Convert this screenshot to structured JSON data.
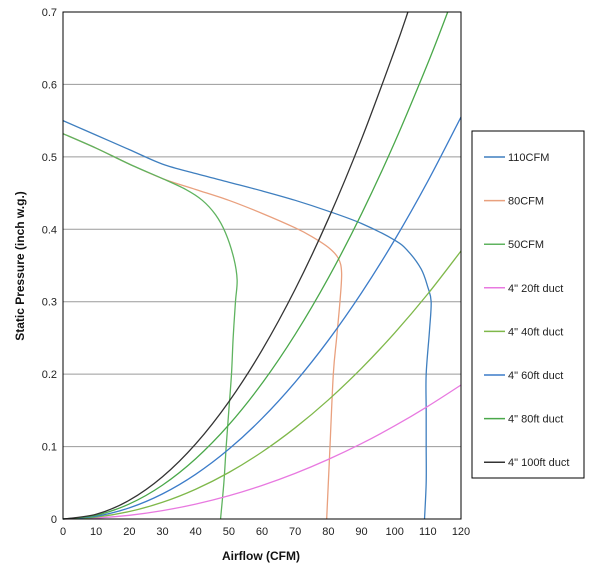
{
  "chart_data": {
    "type": "line",
    "title": "",
    "xlabel": "Airflow (CFM)",
    "ylabel": "Static Pressure (inch w.g.)",
    "xlim": [
      0,
      120
    ],
    "ylim": [
      0,
      0.7
    ],
    "xticks": [
      0,
      10,
      20,
      30,
      40,
      50,
      60,
      70,
      80,
      90,
      100,
      110,
      120
    ],
    "yticks": [
      0,
      0.1,
      0.2,
      0.3,
      0.4,
      0.5,
      0.6,
      0.7
    ],
    "grid": "horizontal",
    "legend_position": "right",
    "series": [
      {
        "name": "110CFM",
        "color": "#3f7fbf",
        "x": [
          0,
          10,
          20,
          30,
          40,
          50,
          60,
          70,
          80,
          90,
          100,
          104,
          108,
          110,
          111,
          110.5,
          109.5,
          109.5,
          109.5,
          109.5,
          109
        ],
        "y": [
          0.55,
          0.53,
          0.51,
          0.49,
          0.477,
          0.465,
          0.453,
          0.44,
          0.425,
          0.408,
          0.385,
          0.37,
          0.345,
          0.32,
          0.3,
          0.26,
          0.2,
          0.15,
          0.1,
          0.05,
          0.0
        ]
      },
      {
        "name": "80CFM",
        "color": "#e9a07e",
        "x": [
          0,
          10,
          20,
          30,
          40,
          50,
          60,
          70,
          75,
          80,
          83,
          84,
          83.5,
          82.5,
          81.5,
          80.5,
          80,
          79.5
        ],
        "y": [
          0.532,
          0.512,
          0.49,
          0.47,
          0.455,
          0.44,
          0.422,
          0.402,
          0.39,
          0.375,
          0.36,
          0.34,
          0.3,
          0.25,
          0.2,
          0.1,
          0.05,
          0.0
        ]
      },
      {
        "name": "50CFM",
        "color": "#5fb35f",
        "x": [
          0,
          10,
          20,
          30,
          37,
          42,
          46,
          49,
          51.5,
          52.5,
          52,
          51.3,
          50.8,
          50,
          49.2,
          48.5,
          47.5
        ],
        "y": [
          0.532,
          0.512,
          0.49,
          0.47,
          0.455,
          0.44,
          0.42,
          0.395,
          0.36,
          0.33,
          0.3,
          0.25,
          0.2,
          0.15,
          0.1,
          0.05,
          0.0
        ]
      },
      {
        "name": "4\" 20ft duct",
        "color": "#e879e0",
        "x": [
          0,
          10,
          20,
          30,
          40,
          50,
          60,
          70,
          80,
          90,
          100,
          110,
          120
        ],
        "y": [
          0,
          0.0013,
          0.0051,
          0.0116,
          0.0206,
          0.0321,
          0.0463,
          0.063,
          0.0823,
          0.1041,
          0.1286,
          0.1556,
          0.185
        ]
      },
      {
        "name": "4\" 40ft duct",
        "color": "#7fb84a",
        "x": [
          0,
          10,
          20,
          30,
          40,
          50,
          60,
          70,
          80,
          90,
          100,
          110,
          120
        ],
        "y": [
          0,
          0.0026,
          0.0103,
          0.0231,
          0.0411,
          0.0642,
          0.0925,
          0.1259,
          0.1644,
          0.2081,
          0.2569,
          0.3108,
          0.37
        ]
      },
      {
        "name": "4\" 60ft duct",
        "color": "#3c7cc9",
        "x": [
          0,
          10,
          20,
          30,
          40,
          50,
          60,
          70,
          80,
          90,
          100,
          110,
          120
        ],
        "y": [
          0,
          0.0039,
          0.0154,
          0.0347,
          0.0617,
          0.0964,
          0.1388,
          0.1889,
          0.2467,
          0.3122,
          0.3854,
          0.4664,
          0.555
        ]
      },
      {
        "name": "4\" 80ft duct",
        "color": "#4aa84a",
        "x": [
          0,
          10,
          20,
          30,
          40,
          50,
          60,
          70,
          80,
          90,
          100,
          110,
          116
        ],
        "y": [
          0,
          0.0052,
          0.0208,
          0.0468,
          0.0832,
          0.13,
          0.1872,
          0.2548,
          0.3328,
          0.4212,
          0.52,
          0.6292,
          0.7
        ]
      },
      {
        "name": "4\" 100ft duct",
        "color": "#333333",
        "x": [
          0,
          10,
          20,
          30,
          40,
          50,
          60,
          70,
          80,
          90,
          100,
          104
        ],
        "y": [
          0,
          0.0065,
          0.0259,
          0.0583,
          0.1036,
          0.1619,
          0.2331,
          0.3172,
          0.4143,
          0.5244,
          0.6474,
          0.7
        ]
      }
    ]
  }
}
